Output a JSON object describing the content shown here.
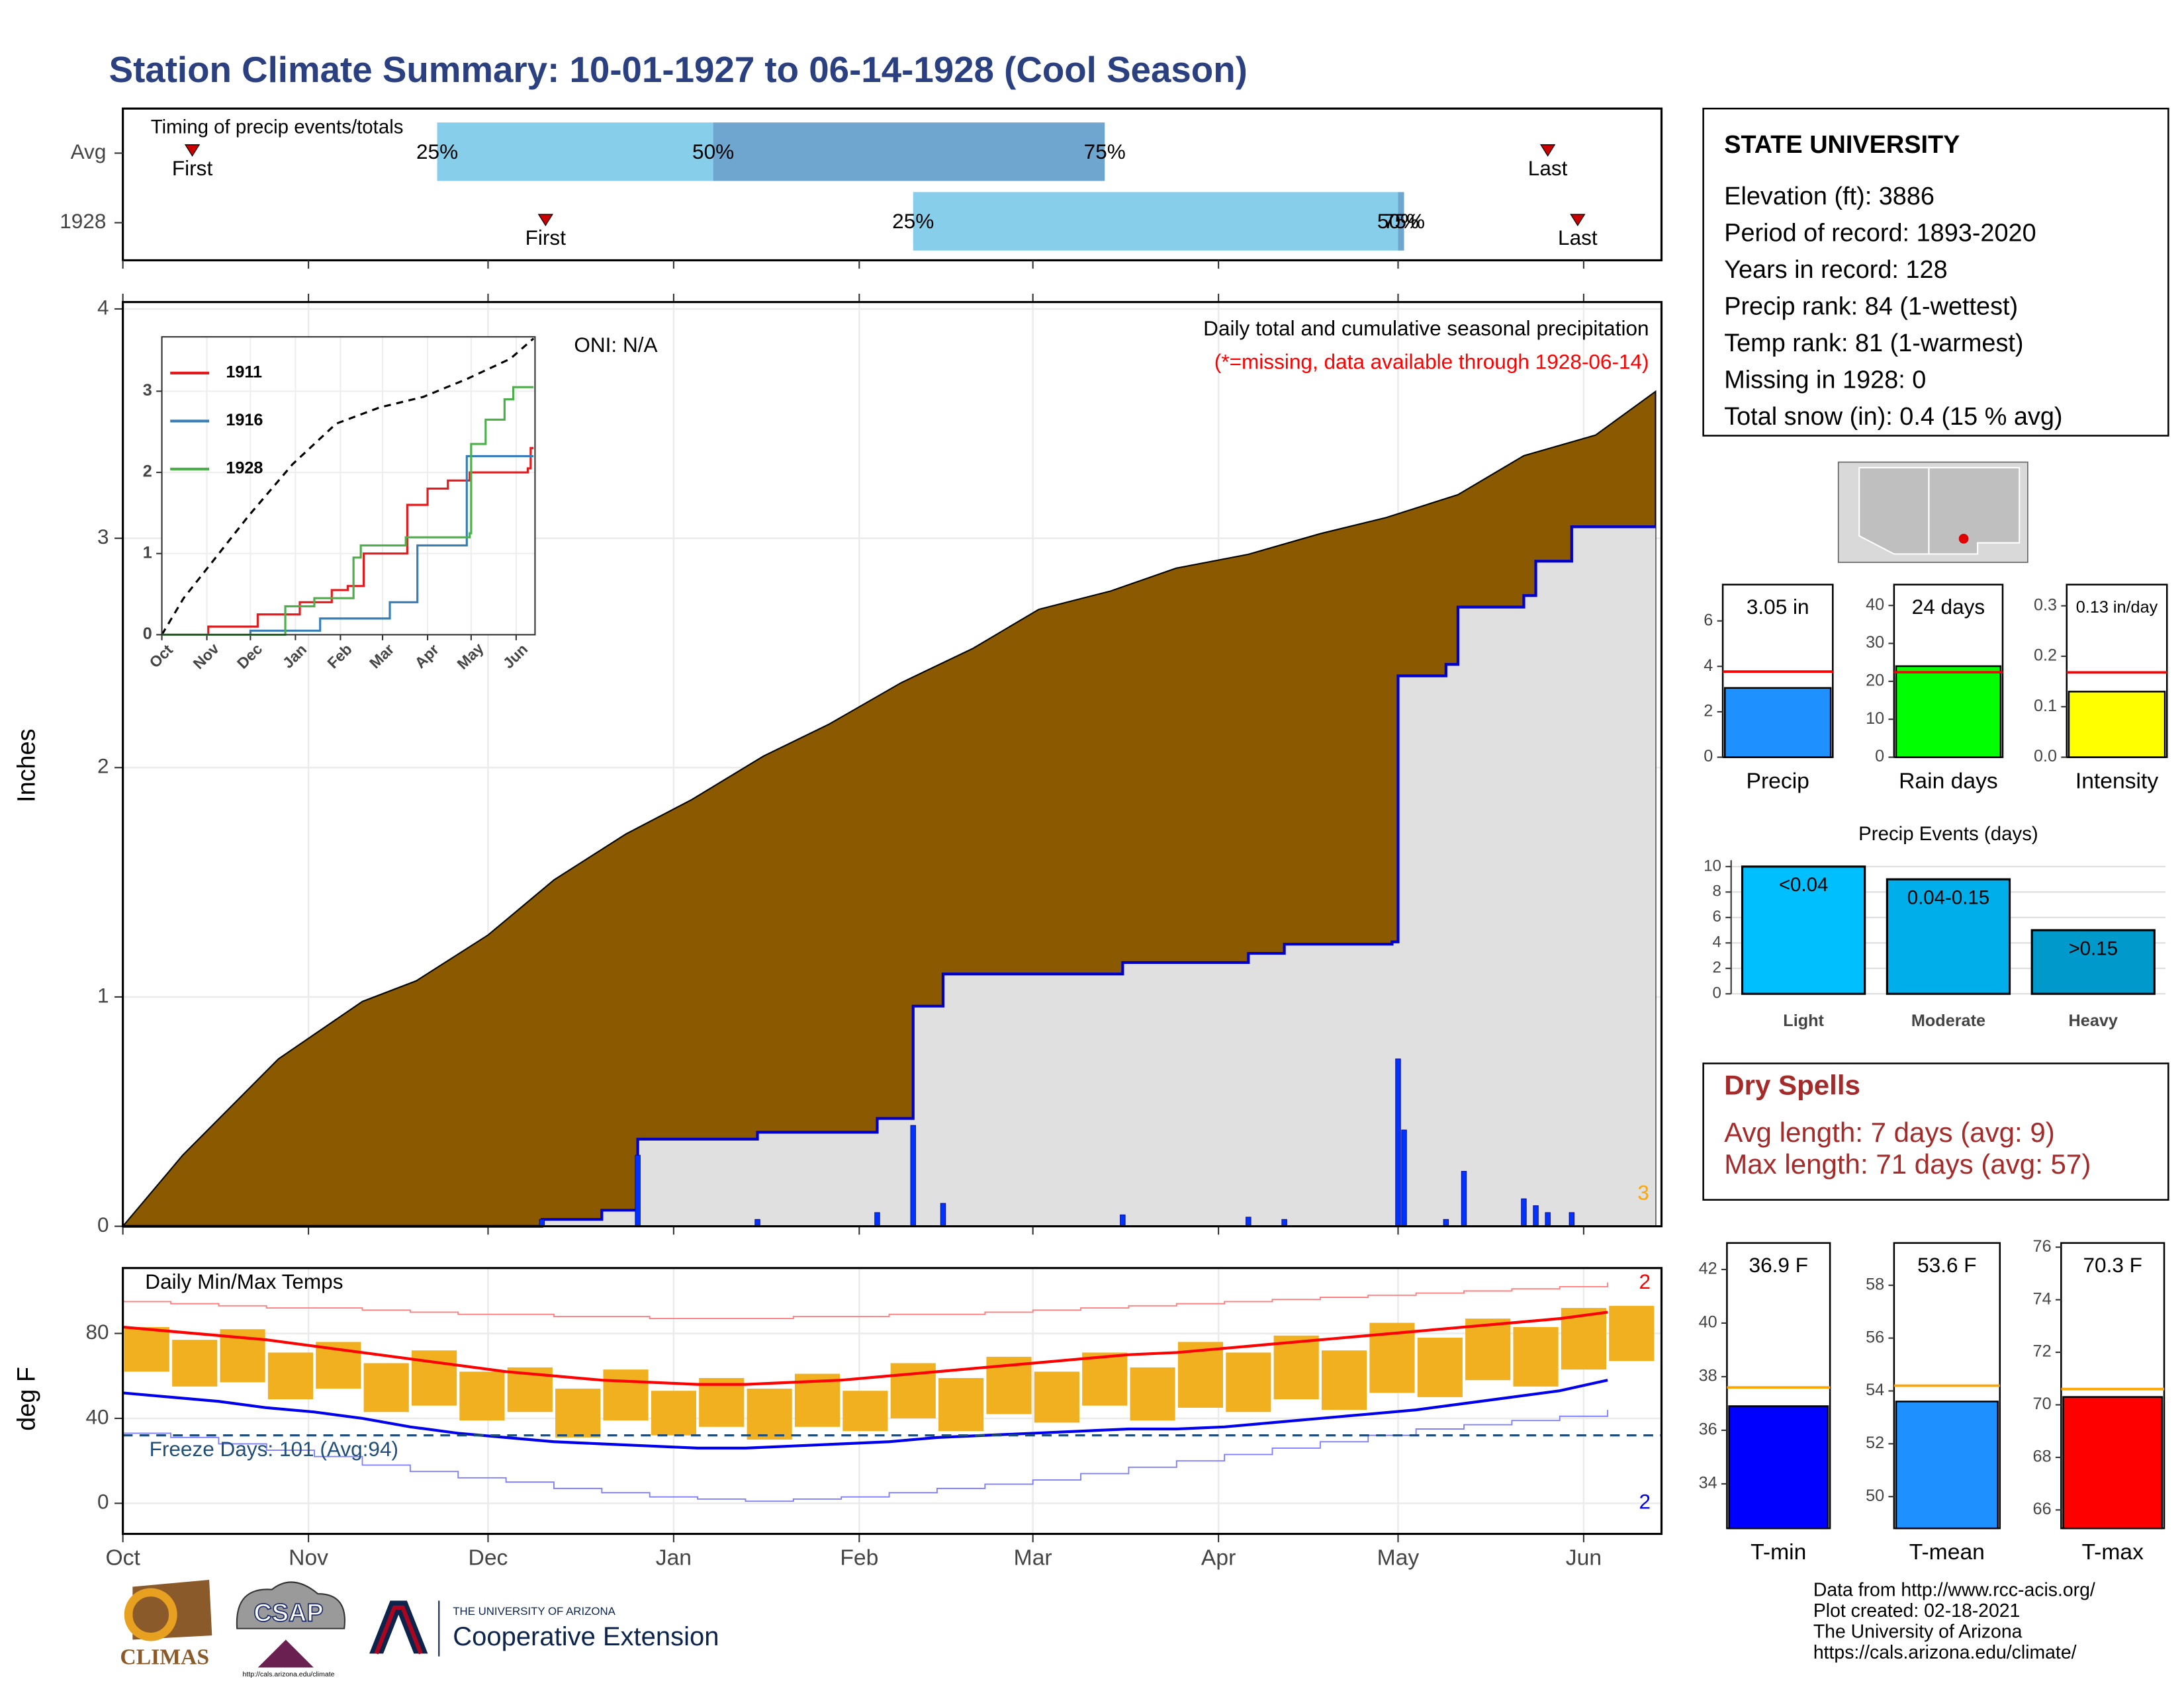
{
  "title": "Station Climate Summary: 10-01-1927 to 06-14-1928 (Cool Season)",
  "station": {
    "title": "STATE UNIVERSITY",
    "lines": [
      "Elevation (ft): 3886",
      "Period of record: 1893-2020",
      "Years in record: 128",
      "Precip rank: 84 (1-wettest)",
      "Temp rank: 81 (1-warmest)",
      "Missing in 1928: 0",
      "Total snow (in): 0.4 (15 % avg)"
    ]
  },
  "dry_spells": {
    "title": "Dry Spells",
    "lines": [
      "Avg length: 7 days (avg: 9)",
      "Max length: 71 days (avg: 57)"
    ]
  },
  "footer": [
    "Data from http://www.rcc-acis.org/",
    "Plot created: 02-18-2021",
    "The University of Arizona",
    "https://cals.arizona.edu/climate/"
  ],
  "logos": {
    "climas": "CLIMAS",
    "csap": "CSAP",
    "csap_url": "http://cals.arizona.edu/climate",
    "ua_top": "THE UNIVERSITY OF ARIZONA",
    "ua_main": "Cooperative Extension"
  },
  "chart_data": [
    {
      "type": "timing",
      "title": "Timing of precip events/totals",
      "xlim": [
        0,
        257
      ],
      "xticks": [
        0,
        31,
        61,
        92,
        123,
        152,
        183,
        213,
        244
      ],
      "labels": {
        "first": "First",
        "last": "Last",
        "p25": "25%",
        "p50": "50%",
        "p75": "75%"
      },
      "rows": [
        {
          "name": "Avg",
          "first": 11.6,
          "p25": 52.5,
          "p50": 98.6,
          "p75": 164,
          "last": 238
        },
        {
          "name": "1928",
          "first": 70.6,
          "p25": 132,
          "p50": 213,
          "p75": 214,
          "last": 243
        }
      ]
    },
    {
      "type": "precip",
      "ylabel": "Inches",
      "oni": "ONI: N/A",
      "subtitle": "Daily total and cumulative seasonal precipitation",
      "note": "(*=missing, data available through 1928-06-14)",
      "corner_note": "3",
      "xlim": [
        0,
        257
      ],
      "xticks": [
        0,
        31,
        61,
        92,
        123,
        152,
        183,
        213,
        244
      ],
      "ylim": [
        0,
        4.03
      ],
      "yticks": [
        0,
        1,
        2,
        3,
        4
      ],
      "grid": true,
      "average_cumulative": {
        "color": "#8b5a00",
        "x": [
          0,
          10,
          26,
          40,
          49,
          61,
          72,
          84,
          95,
          107,
          118,
          130,
          142,
          153,
          165,
          176,
          188,
          200,
          211,
          223,
          234,
          246,
          256
        ],
        "values": [
          0,
          0.31,
          0.73,
          0.98,
          1.07,
          1.27,
          1.51,
          1.71,
          1.86,
          2.05,
          2.19,
          2.37,
          2.52,
          2.69,
          2.77,
          2.87,
          2.93,
          3.02,
          3.09,
          3.19,
          3.36,
          3.45,
          3.64
        ]
      },
      "cumulative_1928": {
        "color": "#0000cd",
        "fill": "#e0e0e0",
        "x": [
          0,
          70,
          80,
          86,
          106,
          126,
          132,
          137,
          167,
          188,
          194,
          212,
          213,
          221,
          223,
          234,
          236,
          242,
          256
        ],
        "values": [
          0,
          0.03,
          0.07,
          0.38,
          0.41,
          0.47,
          0.96,
          1.1,
          1.15,
          1.19,
          1.23,
          1.24,
          2.4,
          2.45,
          2.7,
          2.75,
          2.9,
          3.05,
          3.05
        ]
      },
      "daily": {
        "color": "#0033ff",
        "x": [
          70,
          86,
          106,
          126,
          132,
          137,
          167,
          188,
          194,
          213,
          214,
          221,
          224,
          234,
          236,
          238,
          242
        ],
        "values": [
          0.03,
          0.31,
          0.03,
          0.06,
          0.44,
          0.1,
          0.05,
          0.04,
          0.03,
          0.73,
          0.42,
          0.03,
          0.24,
          0.12,
          0.09,
          0.06,
          0.06
        ]
      }
    },
    {
      "type": "line",
      "xlim": [
        0,
        257
      ],
      "xticks": [
        {
          "value": 0,
          "label": "Oct"
        },
        {
          "value": 31,
          "label": "Nov"
        },
        {
          "value": 61,
          "label": "Dec"
        },
        {
          "value": 92,
          "label": "Jan"
        },
        {
          "value": 123,
          "label": "Feb"
        },
        {
          "value": 152,
          "label": "Mar"
        },
        {
          "value": 183,
          "label": "Apr"
        },
        {
          "value": 213,
          "label": "May"
        },
        {
          "value": 244,
          "label": "Jun"
        }
      ],
      "ylim": [
        0,
        3.67
      ],
      "yticks": [
        0,
        1,
        2,
        3
      ],
      "series": [
        {
          "name": "1911",
          "color": "#e41a1c",
          "x": [
            0,
            32,
            66,
            95,
            117,
            128,
            139,
            169,
            183,
            197,
            212,
            252,
            254,
            256
          ],
          "values": [
            0,
            0.1,
            0.25,
            0.4,
            0.55,
            0.6,
            1.0,
            1.6,
            1.8,
            1.9,
            2.0,
            2.05,
            2.3,
            2.3
          ]
        },
        {
          "name": "1916",
          "color": "#377eb8",
          "x": [
            0,
            61,
            109,
            157,
            176,
            210,
            256
          ],
          "values": [
            0,
            0.05,
            0.2,
            0.4,
            1.1,
            2.2,
            2.2
          ]
        },
        {
          "name": "1928",
          "color": "#4daf4a",
          "x": [
            0,
            85,
            105,
            132,
            137,
            168,
            212,
            213,
            223,
            236,
            242,
            256
          ],
          "values": [
            0,
            0.35,
            0.45,
            0.95,
            1.1,
            1.2,
            1.25,
            2.35,
            2.65,
            2.9,
            3.05,
            3.05
          ]
        }
      ],
      "average": {
        "color": "#000000",
        "x": [
          0,
          15,
          30,
          60,
          90,
          120,
          150,
          180,
          210,
          240,
          256
        ],
        "values": [
          0,
          0.45,
          0.79,
          1.47,
          2.1,
          2.6,
          2.8,
          2.93,
          3.15,
          3.4,
          3.65
        ]
      }
    },
    {
      "type": "temperature",
      "title": "Daily Min/Max Temps",
      "ylabel": "deg F",
      "xlim": [
        0,
        257
      ],
      "xticks": [
        {
          "value": 0,
          "label": "Oct"
        },
        {
          "value": 31,
          "label": "Nov"
        },
        {
          "value": 61,
          "label": "Dec"
        },
        {
          "value": 92,
          "label": "Jan"
        },
        {
          "value": 123,
          "label": "Feb"
        },
        {
          "value": 152,
          "label": "Mar"
        },
        {
          "value": 183,
          "label": "Apr"
        },
        {
          "value": 213,
          "label": "May"
        },
        {
          "value": 244,
          "label": "Jun"
        }
      ],
      "ylim": [
        -14.4,
        110.8
      ],
      "yticks": [
        0,
        40,
        80
      ],
      "x": [
        0,
        8,
        16,
        24,
        32,
        40,
        48,
        56,
        64,
        72,
        80,
        88,
        96,
        104,
        112,
        120,
        128,
        136,
        144,
        152,
        160,
        168,
        176,
        184,
        192,
        200,
        208,
        216,
        224,
        232,
        240,
        248
      ],
      "daily_max": [
        83,
        77,
        82,
        71,
        76,
        66,
        72,
        62,
        64,
        54,
        63,
        53,
        59,
        54,
        61,
        53,
        66,
        59,
        69,
        62,
        71,
        64,
        76,
        71,
        79,
        72,
        85,
        78,
        87,
        83,
        92,
        93
      ],
      "daily_min": [
        62,
        55,
        57,
        49,
        54,
        43,
        46,
        39,
        43,
        31,
        39,
        32,
        36,
        30,
        36,
        34,
        40,
        34,
        42,
        38,
        46,
        39,
        45,
        43,
        49,
        44,
        52,
        50,
        58,
        55,
        63,
        67
      ],
      "avg_max": [
        83,
        81,
        79,
        77,
        74,
        71,
        68,
        65,
        62,
        60,
        58,
        57,
        56,
        56,
        57,
        58,
        60,
        62,
        64,
        66,
        68,
        70,
        71,
        73,
        75,
        77,
        79,
        81,
        83,
        85,
        87,
        90
      ],
      "avg_min": [
        52,
        50,
        48,
        45,
        43,
        40,
        36,
        33,
        31,
        29,
        28,
        27,
        26,
        26,
        27,
        28,
        29,
        31,
        32,
        33,
        34,
        35,
        35,
        36,
        38,
        40,
        42,
        44,
        47,
        50,
        53,
        58
      ],
      "record_max": [
        95,
        94,
        93,
        92,
        92,
        91,
        90,
        89,
        89,
        88,
        88,
        87,
        87,
        87,
        88,
        88,
        89,
        89,
        90,
        91,
        92,
        93,
        94,
        95,
        96,
        97,
        98,
        99,
        100,
        101,
        102,
        104
      ],
      "record_min": [
        33,
        31,
        28,
        25,
        22,
        18,
        15,
        12,
        10,
        7,
        5,
        3,
        2,
        1,
        2,
        3,
        5,
        7,
        9,
        11,
        14,
        17,
        20,
        23,
        26,
        29,
        32,
        35,
        37,
        39,
        41,
        44
      ],
      "colors": {
        "bars": "#f0b020",
        "avg_max": "#ff0000",
        "avg_min": "#0000ee",
        "record_max": "#ff8080",
        "record_min": "#8080ff",
        "freeze": "#1f4e79"
      },
      "freeze": {
        "value": 32,
        "label": "Freeze Days: 101 (Avg:94)"
      },
      "max_note": "2",
      "min_note": "2"
    },
    {
      "type": "mini_bar",
      "xlabel": "Precip",
      "value": 3.05,
      "value_label": "3.05 in",
      "average": 3.77,
      "ylim": [
        0,
        7.6
      ],
      "yticks": [
        0,
        2,
        4,
        6
      ],
      "color": "#1e90ff",
      "avg_color": "#ff0000"
    },
    {
      "type": "mini_bar",
      "xlabel": "Rain days",
      "value": 24,
      "value_label": "24 days",
      "average": 22.4,
      "ylim": [
        0,
        45.5
      ],
      "yticks": [
        0,
        10,
        20,
        30,
        40
      ],
      "color": "#00ff00",
      "avg_color": "#ff0000"
    },
    {
      "type": "mini_bar",
      "xlabel": "Intensity",
      "value": 0.13,
      "value_label": "0.13 in/day",
      "average": 0.168,
      "ylim": [
        0,
        0.342
      ],
      "yticks": [
        {
          "value": 0,
          "label": "0.0"
        },
        0.1,
        0.2,
        0.3
      ],
      "color": "#ffff00",
      "avg_color": "#ff0000"
    },
    {
      "type": "events",
      "title": "Precip Events (days)",
      "categories": [
        "Light",
        "Moderate",
        "Heavy"
      ],
      "bar_labels": [
        "<0.04",
        "0.04-0.15",
        ">0.15"
      ],
      "values": [
        10,
        9,
        5
      ],
      "colors": [
        "#00bfff",
        "#00aeea",
        "#0099cc"
      ],
      "ylim": [
        0,
        10.5
      ],
      "yticks": [
        0,
        2,
        4,
        6,
        8,
        10
      ]
    },
    {
      "type": "mini_bar",
      "xlabel": "T-min",
      "value": 36.9,
      "value_label": "36.9 F",
      "average": 37.6,
      "ylim": [
        32.34,
        42.99
      ],
      "yticks": [
        34,
        36,
        38,
        40,
        42
      ],
      "color": "#0000ff",
      "avg_color": "#ffa500"
    },
    {
      "type": "mini_bar",
      "xlabel": "T-mean",
      "value": 53.6,
      "value_label": "53.6 F",
      "average": 54.2,
      "ylim": [
        48.8,
        59.6
      ],
      "yticks": [
        50,
        52,
        54,
        56,
        58
      ],
      "color": "#1e90ff",
      "avg_color": "#ffa500"
    },
    {
      "type": "mini_bar",
      "xlabel": "T-max",
      "value": 70.3,
      "value_label": "70.3 F",
      "average": 70.6,
      "ylim": [
        65.3,
        76.16
      ],
      "yticks": [
        66,
        68,
        70,
        72,
        74,
        76
      ],
      "color": "#ff0000",
      "avg_color": "#ffa500"
    }
  ]
}
